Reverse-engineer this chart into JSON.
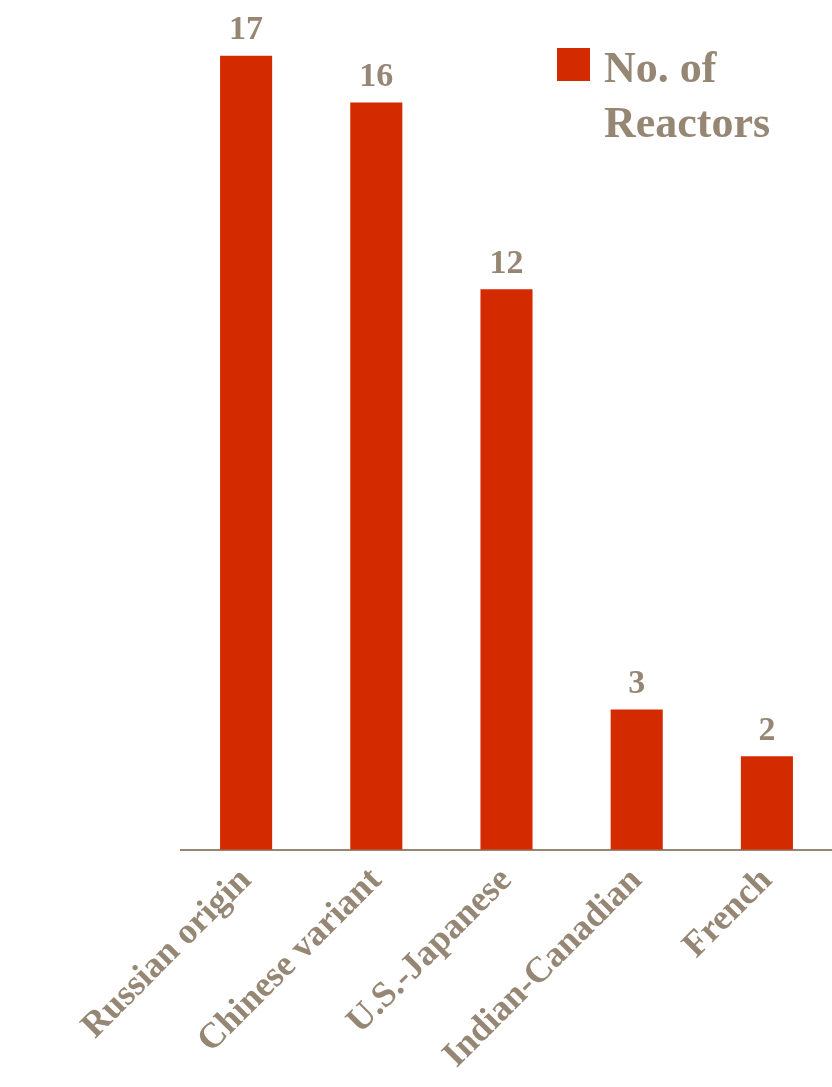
{
  "chart_data": {
    "type": "bar",
    "categories": [
      "Russian origin",
      "Chinese variant",
      "U.S.-Japanese",
      "Indian-Canadian",
      "French"
    ],
    "series": [
      {
        "name": "No. of Reactors",
        "color": "#d42a00",
        "values": [
          17,
          16,
          12,
          3,
          2
        ]
      }
    ],
    "data_labels": true,
    "legend": "top right",
    "grid": false
  }
}
